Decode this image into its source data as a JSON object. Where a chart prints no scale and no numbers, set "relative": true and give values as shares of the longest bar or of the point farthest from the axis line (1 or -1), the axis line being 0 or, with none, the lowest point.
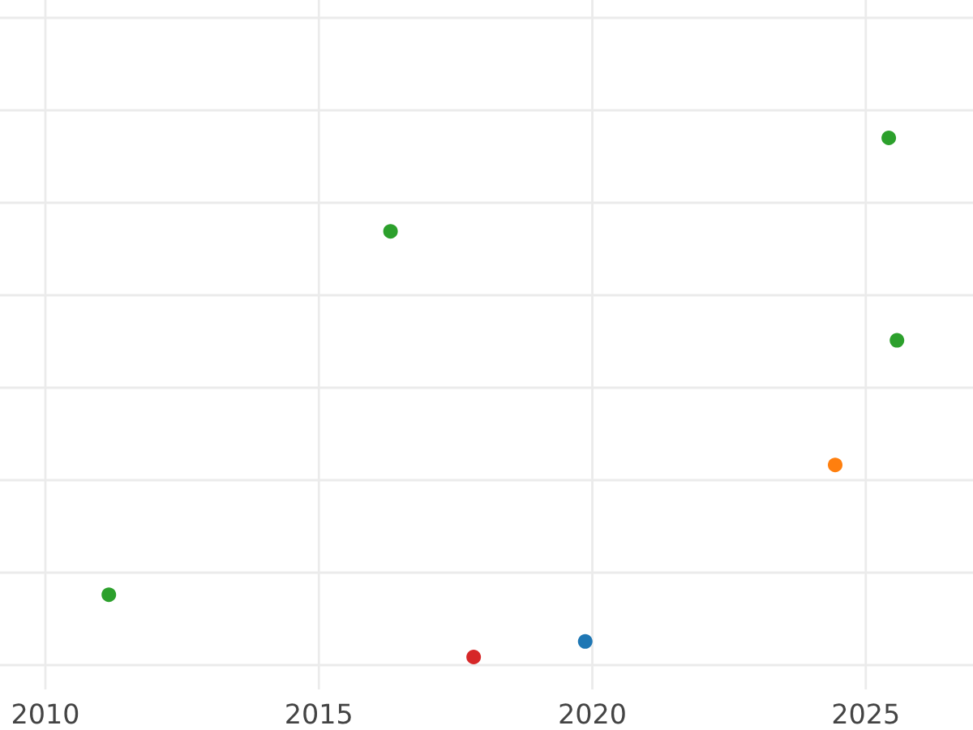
{
  "chart_data": {
    "type": "scatter",
    "relative": true,
    "x": [
      2011.16,
      2016.31,
      2017.83,
      2019.87,
      2024.44,
      2025.42,
      2025.57
    ],
    "values": [
      0.12,
      0.82,
      0,
      0.03,
      0.37,
      1,
      0.61
    ],
    "colors": [
      "#2ca02c",
      "#2ca02c",
      "#d62728",
      "#1f77b4",
      "#ff7f0e",
      "#2ca02c",
      "#2ca02c"
    ],
    "xlim": [
      2009.17,
      2026.96
    ],
    "xticks": [
      2010,
      2015,
      2020,
      2025
    ],
    "grid": true,
    "marker": "circle",
    "tick_labels": "x"
  }
}
